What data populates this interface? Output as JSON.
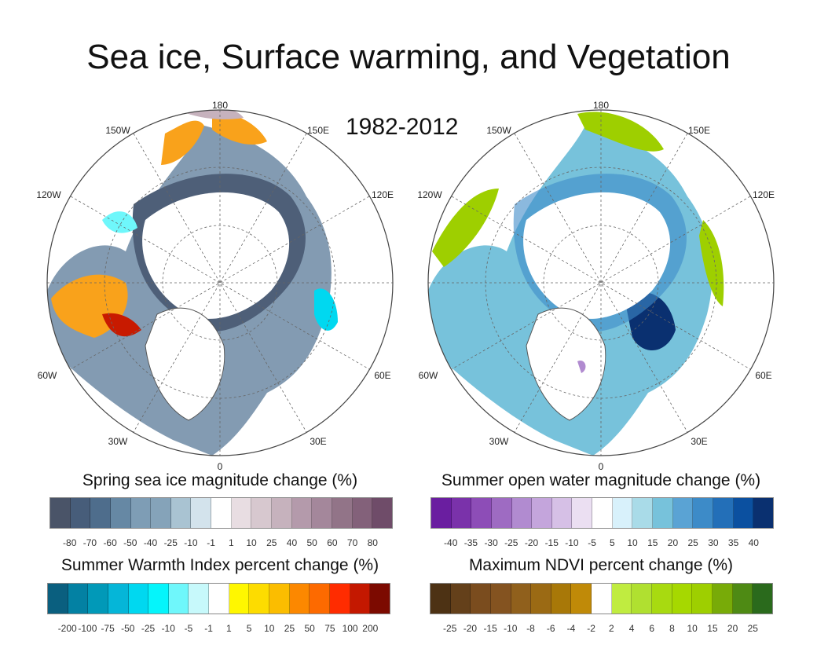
{
  "title": "Sea ice, Surface warming, and Vegetation",
  "period": "1982-2012",
  "longitude_labels": [
    "180",
    "150W",
    "150E",
    "120W",
    "120E",
    "60W",
    "60E",
    "30W",
    "30E",
    "0"
  ],
  "colorbars": [
    {
      "title": "Spring sea ice magnitude change (%)",
      "ticks": [
        "-80",
        "-70",
        "-60",
        "-50",
        "-40",
        "-25",
        "-10",
        "-1",
        "1",
        "10",
        "25",
        "40",
        "50",
        "60",
        "70",
        "80"
      ],
      "colors": [
        "#4a5468",
        "#475d7a",
        "#4e6d8c",
        "#6688a4",
        "#7e9db5",
        "#85a3b9",
        "#a9c3d2",
        "#d3e3ec",
        "#ffffff",
        "#e8dde2",
        "#d7c8cf",
        "#c6b2bd",
        "#b49aab",
        "#a4879b",
        "#927488",
        "#83617a",
        "#6f4c69"
      ]
    },
    {
      "title": "Summer Warmth Index percent change (%)",
      "ticks": [
        "-200",
        "-100",
        "-75",
        "-50",
        "-25",
        "-10",
        "-5",
        "-1",
        "1",
        "5",
        "10",
        "25",
        "50",
        "75",
        "100",
        "200"
      ],
      "colors": [
        "#0a5f7f",
        "#0381a3",
        "#0199b8",
        "#05b6d8",
        "#00d8f0",
        "#05f5fb",
        "#6ff7fb",
        "#c7f9fb",
        "#ffffff",
        "#fff700",
        "#fddc00",
        "#fbbd00",
        "#fc8800",
        "#fd6a00",
        "#ff2c00",
        "#c41800",
        "#7c0a00"
      ]
    },
    {
      "title": "Summer open water magnitude change (%)",
      "ticks": [
        "-40",
        "-35",
        "-30",
        "-25",
        "-20",
        "-15",
        "-10",
        "-5",
        "5",
        "10",
        "15",
        "20",
        "25",
        "30",
        "35",
        "40"
      ],
      "colors": [
        "#6a1ea0",
        "#7a32aa",
        "#8d4db7",
        "#9e6bc2",
        "#b18bd0",
        "#c4a5dc",
        "#d6c0e6",
        "#ebdff2",
        "#ffffff",
        "#d8f1fb",
        "#a9dbe8",
        "#77c2db",
        "#5aa3d4",
        "#3d8bc8",
        "#236fb8",
        "#0b50a0",
        "#0a3070"
      ]
    },
    {
      "title": "Maximum NDVI percent change (%)",
      "ticks": [
        "-25",
        "-20",
        "-15",
        "-10",
        "-8",
        "-6",
        "-4",
        "-2",
        "2",
        "4",
        "6",
        "8",
        "10",
        "15",
        "20",
        "25"
      ],
      "colors": [
        "#4d3214",
        "#64401a",
        "#7a4c1e",
        "#845320",
        "#90601c",
        "#9b6a14",
        "#a87808",
        "#c08a08",
        "#ffffff",
        "#c0ec40",
        "#b0e030",
        "#a8da10",
        "#a6d800",
        "#9ecf00",
        "#78ab08",
        "#4e8a14",
        "#2a6a1c"
      ]
    }
  ]
}
